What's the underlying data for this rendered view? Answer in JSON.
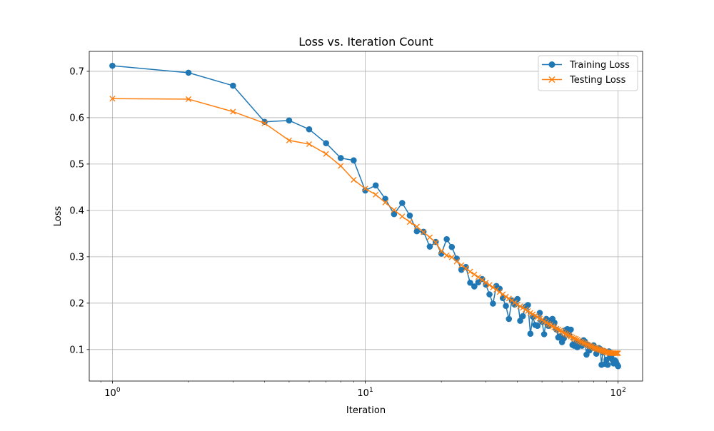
{
  "chart_data": {
    "type": "line",
    "title": "Loss vs. Iteration Count",
    "xlabel": "Iteration",
    "ylabel": "Loss",
    "xscale": "log",
    "xlim": [
      0.81,
      125
    ],
    "ylim": [
      0.032,
      0.743
    ],
    "x_ticks": [
      {
        "value": 1,
        "mantissa": "10",
        "exp": "0"
      },
      {
        "value": 10,
        "mantissa": "10",
        "exp": "1"
      },
      {
        "value": 100,
        "mantissa": "10",
        "exp": "2"
      }
    ],
    "y_ticks": [
      {
        "value": 0.1,
        "label": "0.1"
      },
      {
        "value": 0.2,
        "label": "0.2"
      },
      {
        "value": 0.3,
        "label": "0.3"
      },
      {
        "value": 0.4,
        "label": "0.4"
      },
      {
        "value": 0.5,
        "label": "0.5"
      },
      {
        "value": 0.6,
        "label": "0.6"
      },
      {
        "value": 0.7,
        "label": "0.7"
      }
    ],
    "grid": true,
    "legend_position": "top-right",
    "x": [
      1,
      2,
      3,
      4,
      5,
      6,
      7,
      8,
      9,
      10,
      11,
      12,
      13,
      14,
      15,
      16,
      17,
      18,
      19,
      20,
      21,
      22,
      23,
      24,
      25,
      26,
      27,
      28,
      29,
      30,
      31,
      32,
      33,
      34,
      35,
      36,
      37,
      38,
      39,
      40,
      41,
      42,
      43,
      44,
      45,
      46,
      47,
      48,
      49,
      50,
      51,
      52,
      53,
      54,
      55,
      56,
      57,
      58,
      59,
      60,
      61,
      62,
      63,
      64,
      65,
      66,
      67,
      68,
      69,
      70,
      71,
      72,
      73,
      74,
      75,
      76,
      77,
      78,
      79,
      80,
      81,
      82,
      83,
      84,
      85,
      86,
      87,
      88,
      89,
      90,
      91,
      92,
      93,
      94,
      95,
      96,
      97,
      98,
      99,
      100
    ],
    "series": [
      {
        "name": "Training Loss",
        "color": "#1f77b4",
        "marker": "circle",
        "values": [
          0.712,
          0.697,
          0.669,
          0.591,
          0.594,
          0.575,
          0.545,
          0.513,
          0.508,
          0.443,
          0.454,
          0.425,
          0.392,
          0.416,
          0.389,
          0.355,
          0.354,
          0.322,
          0.332,
          0.307,
          0.338,
          0.321,
          0.296,
          0.272,
          0.278,
          0.244,
          0.236,
          0.245,
          0.252,
          0.24,
          0.219,
          0.199,
          0.237,
          0.231,
          0.211,
          0.194,
          0.166,
          0.206,
          0.197,
          0.209,
          0.162,
          0.172,
          0.192,
          0.196,
          0.134,
          0.171,
          0.153,
          0.151,
          0.179,
          0.16,
          0.133,
          0.166,
          0.151,
          0.163,
          0.166,
          0.158,
          0.143,
          0.126,
          0.129,
          0.116,
          0.124,
          0.142,
          0.144,
          0.132,
          0.143,
          0.11,
          0.108,
          0.114,
          0.105,
          0.111,
          0.116,
          0.108,
          0.12,
          0.117,
          0.089,
          0.11,
          0.098,
          0.103,
          0.104,
          0.109,
          0.103,
          0.091,
          0.098,
          0.103,
          0.101,
          0.067,
          0.094,
          0.097,
          0.069,
          0.078,
          0.067,
          0.096,
          0.085,
          0.087,
          0.078,
          0.07,
          0.077,
          0.074,
          0.068,
          0.064
        ]
      },
      {
        "name": "Testing Loss",
        "color": "#ff7f0e",
        "marker": "x",
        "values": [
          0.641,
          0.64,
          0.613,
          0.588,
          0.551,
          0.543,
          0.522,
          0.496,
          0.466,
          0.447,
          0.434,
          0.417,
          0.401,
          0.387,
          0.375,
          0.365,
          0.353,
          0.342,
          0.331,
          0.312,
          0.303,
          0.299,
          0.29,
          0.282,
          0.275,
          0.268,
          0.262,
          0.256,
          0.25,
          0.244,
          0.239,
          0.234,
          0.229,
          0.224,
          0.219,
          0.214,
          0.21,
          0.206,
          0.201,
          0.197,
          0.193,
          0.19,
          0.186,
          0.183,
          0.179,
          0.176,
          0.173,
          0.17,
          0.167,
          0.164,
          0.161,
          0.158,
          0.155,
          0.153,
          0.15,
          0.148,
          0.145,
          0.143,
          0.141,
          0.139,
          0.136,
          0.134,
          0.132,
          0.13,
          0.128,
          0.126,
          0.124,
          0.123,
          0.121,
          0.119,
          0.117,
          0.116,
          0.114,
          0.113,
          0.111,
          0.11,
          0.108,
          0.107,
          0.106,
          0.104,
          0.103,
          0.102,
          0.101,
          0.1,
          0.099,
          0.098,
          0.097,
          0.096,
          0.095,
          0.094,
          0.094,
          0.093,
          0.093,
          0.092,
          0.092,
          0.092,
          0.092,
          0.092,
          0.092,
          0.092
        ]
      }
    ]
  }
}
